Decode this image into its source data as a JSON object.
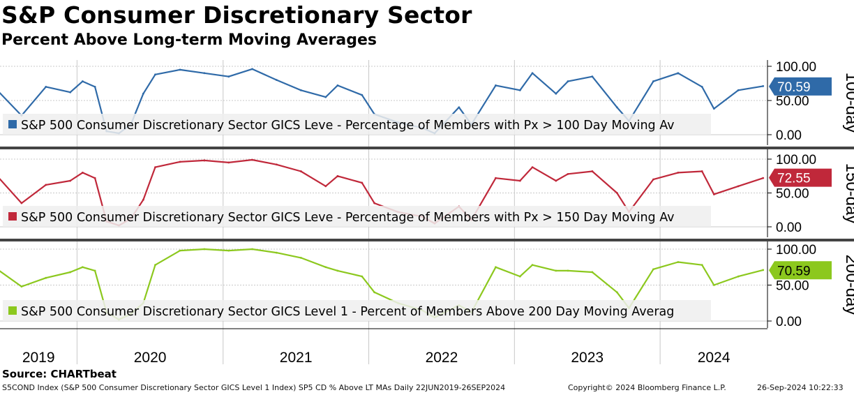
{
  "header": {
    "title": "S&P Consumer Discretionary Sector",
    "subtitle": "Percent Above Long-term Moving Averages"
  },
  "source": "Source: CHARTbeat",
  "footer": {
    "left": "S5COND Index (S&P 500 Consumer Discretionary Sector GICS Level 1 Index) SP5 CD % Above LT MAs  Daily 22JUN2019-26SEP2024",
    "middle": "Copyright© 2024 Bloomberg Finance L.P.",
    "right": "26-Sep-2024 10:22:33"
  },
  "chart_data": {
    "type": "line",
    "x_axis": {
      "labels": [
        "2019",
        "2020",
        "2021",
        "2022",
        "2023",
        "2024"
      ],
      "range": [
        "2019-06-22",
        "2024-09-26"
      ]
    },
    "panels": [
      {
        "name": "100-day",
        "legend": "S&P 500 Consumer Discretionary Sector GICS Leve - Percentage of Members with Px > 100 Day Moving Av",
        "color": "#2f6aa8",
        "light_color": "#8fb0d2",
        "last_value": "70.59",
        "ylim": [
          0,
          100
        ],
        "ytick_labels": [
          "100.00",
          "50.00",
          "0.00"
        ],
        "x": [
          "2019-06",
          "2019-08",
          "2019-10",
          "2019-12",
          "2020-01",
          "2020-02",
          "2020-03",
          "2020-04",
          "2020-05",
          "2020-06",
          "2020-07",
          "2020-09",
          "2020-11",
          "2021-01",
          "2021-03",
          "2021-05",
          "2021-07",
          "2021-09",
          "2021-10",
          "2021-12",
          "2022-01",
          "2022-03",
          "2022-05",
          "2022-06",
          "2022-08",
          "2022-09",
          "2022-11",
          "2023-01",
          "2023-02",
          "2023-04",
          "2023-05",
          "2023-07",
          "2023-09",
          "2023-10",
          "2023-12",
          "2024-02",
          "2024-04",
          "2024-05",
          "2024-07",
          "2024-09"
        ],
        "values": [
          65,
          28,
          70,
          62,
          78,
          70,
          5,
          2,
          15,
          60,
          88,
          95,
          90,
          85,
          96,
          80,
          65,
          55,
          72,
          58,
          30,
          18,
          10,
          2,
          40,
          15,
          72,
          65,
          90,
          60,
          78,
          85,
          40,
          20,
          78,
          90,
          70,
          38,
          65,
          71
        ]
      },
      {
        "name": "150-day",
        "legend": "S&P 500 Consumer Discretionary Sector GICS Leve - Percentage of Members with Px > 150 Day Moving Av",
        "color": "#c0283a",
        "light_color": "#e29aa3",
        "last_value": "72.55",
        "ylim": [
          0,
          100
        ],
        "ytick_labels": [
          "100.00",
          "50.00",
          "0.00"
        ],
        "x": [
          "2019-06",
          "2019-08",
          "2019-10",
          "2019-12",
          "2020-01",
          "2020-02",
          "2020-03",
          "2020-04",
          "2020-05",
          "2020-06",
          "2020-07",
          "2020-09",
          "2020-11",
          "2021-01",
          "2021-03",
          "2021-05",
          "2021-07",
          "2021-09",
          "2021-10",
          "2021-12",
          "2022-01",
          "2022-03",
          "2022-05",
          "2022-06",
          "2022-08",
          "2022-09",
          "2022-11",
          "2023-01",
          "2023-02",
          "2023-04",
          "2023-05",
          "2023-07",
          "2023-09",
          "2023-10",
          "2023-12",
          "2024-02",
          "2024-04",
          "2024-05",
          "2024-07",
          "2024-09"
        ],
        "values": [
          75,
          35,
          62,
          68,
          80,
          72,
          8,
          2,
          12,
          40,
          88,
          96,
          98,
          95,
          99,
          92,
          82,
          60,
          75,
          65,
          35,
          22,
          15,
          5,
          30,
          10,
          72,
          68,
          88,
          68,
          78,
          82,
          50,
          22,
          70,
          80,
          82,
          48,
          60,
          72
        ]
      },
      {
        "name": "200-day",
        "legend": "S&P 500 Consumer Discretionary Sector GICS Level 1 - Percent of Members Above 200 Day Moving Averag",
        "color": "#8cc81e",
        "light_color": "#c6e48e",
        "last_value": "70.59",
        "ylim": [
          0,
          100
        ],
        "ytick_labels": [
          "100.00",
          "50.00",
          "0.00"
        ],
        "x": [
          "2019-06",
          "2019-08",
          "2019-10",
          "2019-12",
          "2020-01",
          "2020-02",
          "2020-03",
          "2020-04",
          "2020-05",
          "2020-06",
          "2020-07",
          "2020-09",
          "2020-11",
          "2021-01",
          "2021-03",
          "2021-05",
          "2021-07",
          "2021-09",
          "2021-10",
          "2021-12",
          "2022-01",
          "2022-03",
          "2022-05",
          "2022-06",
          "2022-08",
          "2022-09",
          "2022-11",
          "2023-01",
          "2023-02",
          "2023-04",
          "2023-05",
          "2023-07",
          "2023-09",
          "2023-10",
          "2023-12",
          "2024-02",
          "2024-04",
          "2024-05",
          "2024-07",
          "2024-09"
        ],
        "values": [
          72,
          48,
          60,
          68,
          75,
          70,
          12,
          2,
          10,
          25,
          78,
          98,
          100,
          98,
          100,
          95,
          88,
          75,
          70,
          62,
          40,
          25,
          15,
          5,
          22,
          12,
          75,
          62,
          78,
          70,
          70,
          68,
          40,
          18,
          72,
          82,
          78,
          50,
          62,
          71
        ]
      }
    ]
  }
}
